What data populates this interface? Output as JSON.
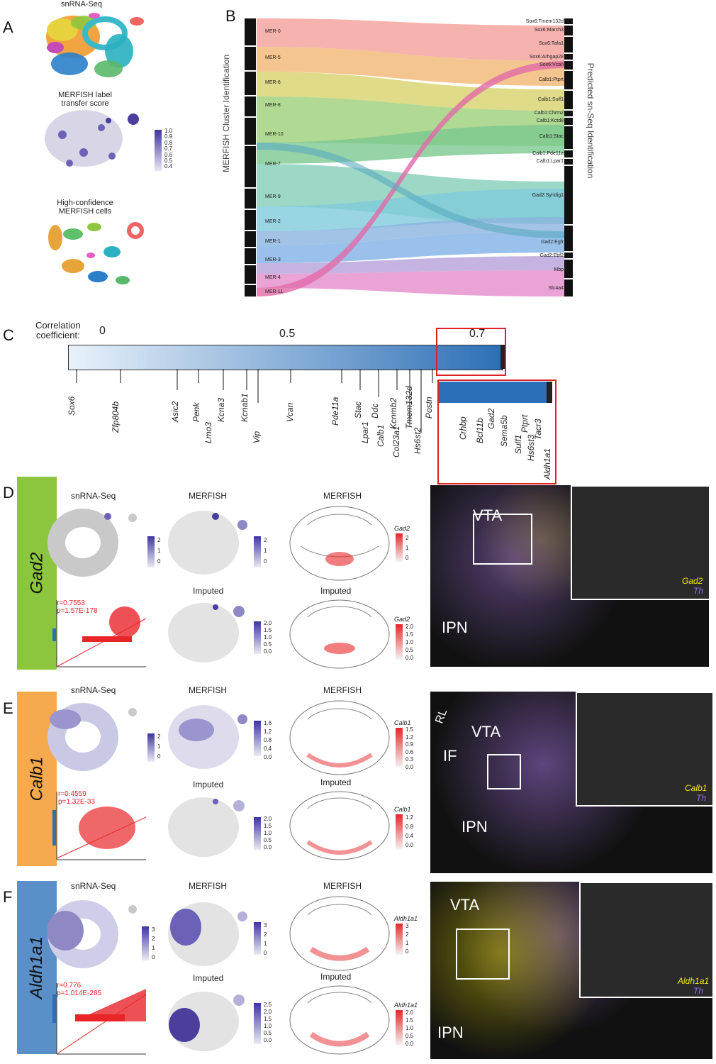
{
  "panelA": {
    "letter": "A",
    "titles": [
      "snRNA-Seq",
      "MERFISH label\ntransfer score",
      "High-confidence\nMERFISH cells"
    ],
    "colorbar_ticks": [
      "1.0",
      "0.9",
      "0.8",
      "0.7",
      "0.6",
      "0.5",
      "0.4"
    ]
  },
  "panelB": {
    "letter": "B",
    "left_axis": "MERFISH Cluster Identification",
    "right_axis": "Predicted sn-Seq Identification",
    "left_clusters": [
      "MER-0",
      "MER-5",
      "MER-6",
      "MER-8",
      "MER-10",
      "MER-7",
      "MER-9",
      "MER-2",
      "MER-1",
      "MER-3",
      "MER-4",
      "MER-11"
    ],
    "right_clusters": [
      "Sox6:Tmem132d",
      "Sox6:March3",
      "Sox6:Tafa1",
      "Sox6:Arhgap28",
      "Sox6:Vcan",
      "Calb1:Ptprt",
      "Calb1:Sulf1",
      "Calb1:Chrm2",
      "Calb1:Kctd8",
      "Calb1:Stac",
      "Calb1:Pde11a",
      "Calb1:Lpar1",
      "Gad2:Syndig1",
      "Gad2:Egfr",
      "Gad2:Ebf2",
      "Mbp",
      "Slc4a4"
    ]
  },
  "panelC": {
    "letter": "C",
    "title": "Correlation\ncoefficient:",
    "ticks": [
      "0",
      "0.5",
      "0.7"
    ],
    "genes_main": [
      "Sox6",
      "Zfp804b",
      "Asic2",
      "Penk",
      "Lmo3",
      "Kcna3",
      "Kcnab1",
      "Vip",
      "Vcan",
      "Pde11a",
      "Lpar1",
      "Stac",
      "Calb1",
      "Ddc",
      "Col23a1",
      "Kcnmb2",
      "Hs6st2",
      "Tmem132d",
      "Postn"
    ],
    "genes_zoom": [
      "Crhbp",
      "Bcl11b",
      "Gad2",
      "Sema5b",
      "Sulf1",
      "Ptprt",
      "Hs6st3",
      "Tacr3",
      "Aldh1a1"
    ]
  },
  "rows": [
    {
      "letter": "D",
      "gene": "Gad2",
      "tab_color": "#8cc63f",
      "snrna": "snRNA-Seq",
      "merfish": "MERFISH",
      "merfish2": "MERFISH",
      "imputed": "Imputed",
      "imputed2": "Imputed",
      "r": "r=0.7553",
      "p": "p=1.57E-178",
      "cb1": [
        "2",
        "1",
        "0"
      ],
      "cb2": [
        "2",
        "1",
        "0"
      ],
      "cb3": [
        "2.0",
        "1.5",
        "1.0",
        "0.5",
        "0.0"
      ],
      "atlas_cb1": [
        "2",
        "1",
        "0"
      ],
      "atlas_cb2": [
        "2.0",
        "1.5",
        "1.0",
        "0.5",
        "0.0"
      ],
      "micro_labels": [
        "VTA",
        "IPN"
      ],
      "legend": [
        "Gad2",
        "Th"
      ]
    },
    {
      "letter": "E",
      "gene": "Calb1",
      "tab_color": "#f7a94d",
      "snrna": "snRNA-Seq",
      "merfish": "MERFISH",
      "merfish2": "MERFISH",
      "imputed": "Imputed",
      "imputed2": "Imputed",
      "r": "r=0.4559",
      "p": "p=1.32E-33",
      "cb1": [
        "2",
        "1",
        "0"
      ],
      "cb2": [
        "1.6",
        "1.2",
        "0.8",
        "0.4",
        "0.0"
      ],
      "cb3": [
        "2.0",
        "1.5",
        "1.0",
        "0.5",
        "0.0"
      ],
      "atlas_cb1": [
        "1.5",
        "1.2",
        "0.9",
        "0.6",
        "0.3",
        "0.0"
      ],
      "atlas_cb2": [
        "1.2",
        "0.8",
        "0.4",
        "0.0"
      ],
      "micro_labels": [
        "VTA",
        "IF",
        "IPN",
        "RL"
      ],
      "legend": [
        "Calb1",
        "Th"
      ]
    },
    {
      "letter": "F",
      "gene": "Aldh1a1",
      "tab_color": "#5a8fc8",
      "snrna": "snRNA-Seq",
      "merfish": "MERFISH",
      "merfish2": "MERFISH",
      "imputed": "Imputed",
      "imputed2": "Imputed",
      "r": "r=0.776",
      "p": "p=1.014E-285",
      "cb1": [
        "3",
        "2",
        "1",
        "0"
      ],
      "cb2": [
        "3",
        "2",
        "1",
        "0"
      ],
      "cb3": [
        "2.5",
        "2.0",
        "1.5",
        "1.0",
        "0.5",
        "0.0"
      ],
      "atlas_cb1": [
        "3",
        "2",
        "1",
        "0"
      ],
      "atlas_cb2": [
        "2.0",
        "1.5",
        "1.0",
        "0.5",
        "0.0"
      ],
      "micro_labels": [
        "VTA",
        "IPN"
      ],
      "legend": [
        "Aldh1a1",
        "Th"
      ]
    }
  ],
  "colors": {
    "purple": "#5b4ea6",
    "red": "#e8262a",
    "yellow": "#f2e600",
    "micro_purple": "#9b6fd6"
  }
}
